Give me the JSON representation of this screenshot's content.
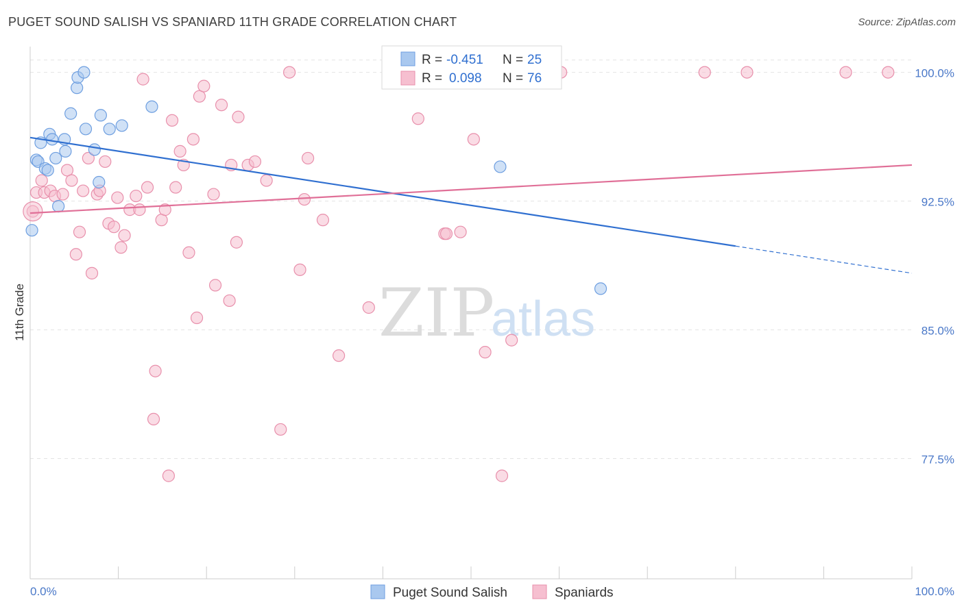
{
  "title": "PUGET SOUND SALISH VS SPANIARD 11TH GRADE CORRELATION CHART",
  "source": "Source: ZipAtlas.com",
  "watermark": {
    "zip": "ZIP",
    "atlas": "atlas"
  },
  "colors": {
    "blue_fill": "#a9c8ef",
    "blue_stroke": "#6d9ee0",
    "blue_line": "#2f6fd0",
    "pink_fill": "#f6bfd0",
    "pink_stroke": "#e88fab",
    "pink_line": "#e06f97",
    "tick_text": "#4a78c8",
    "grid": "#e3e3e3"
  },
  "legend_top": {
    "rows": [
      {
        "r_label": "R =",
        "r_value": "-0.451",
        "n_label": "N =",
        "n_value": "25"
      },
      {
        "r_label": "R =",
        "r_value": "0.098",
        "n_label": "N =",
        "n_value": "76"
      }
    ]
  },
  "chart_data": {
    "type": "scatter",
    "xlabel": "",
    "ylabel": "11th Grade",
    "xlim": [
      0,
      100
    ],
    "ylim": [
      70.5,
      101.5
    ],
    "x_tick_labels": [
      "0.0%",
      "100.0%"
    ],
    "y_ticks": [
      77.5,
      85.0,
      92.5,
      100.0
    ],
    "y_tick_labels": [
      "77.5%",
      "85.0%",
      "92.5%",
      "100.0%"
    ],
    "grid": true,
    "legend_position": "bottom-center",
    "series": [
      {
        "name": "Puget Sound Salish",
        "color": "#a9c8ef",
        "points": [
          [
            0.2,
            90.8
          ],
          [
            0.7,
            94.9
          ],
          [
            0.9,
            94.8
          ],
          [
            1.2,
            95.9
          ],
          [
            1.7,
            94.4
          ],
          [
            2.0,
            94.3
          ],
          [
            2.2,
            96.4
          ],
          [
            2.5,
            96.1
          ],
          [
            2.9,
            95.0
          ],
          [
            3.2,
            92.2
          ],
          [
            3.9,
            96.1
          ],
          [
            4.0,
            95.4
          ],
          [
            4.6,
            97.6
          ],
          [
            5.3,
            99.1
          ],
          [
            5.4,
            99.7
          ],
          [
            6.1,
            100.0
          ],
          [
            6.3,
            96.7
          ],
          [
            7.3,
            95.5
          ],
          [
            7.8,
            93.6
          ],
          [
            8.0,
            97.5
          ],
          [
            9.0,
            96.7
          ],
          [
            10.4,
            96.9
          ],
          [
            13.8,
            98.0
          ],
          [
            53.3,
            94.5
          ],
          [
            64.7,
            87.4
          ]
        ]
      },
      {
        "name": "Spaniards",
        "color": "#f6bfd0",
        "points": [
          [
            0.3,
            91.9
          ],
          [
            0.7,
            93.0
          ],
          [
            1.3,
            93.7
          ],
          [
            1.6,
            93.0
          ],
          [
            2.3,
            93.1
          ],
          [
            2.8,
            92.8
          ],
          [
            3.7,
            92.9
          ],
          [
            4.2,
            94.3
          ],
          [
            4.7,
            93.7
          ],
          [
            5.2,
            89.4
          ],
          [
            5.6,
            90.7
          ],
          [
            6.0,
            93.1
          ],
          [
            6.6,
            95.0
          ],
          [
            7.0,
            88.3
          ],
          [
            7.6,
            92.9
          ],
          [
            7.9,
            93.1
          ],
          [
            8.5,
            94.8
          ],
          [
            8.9,
            91.2
          ],
          [
            9.5,
            91.0
          ],
          [
            9.9,
            92.7
          ],
          [
            10.3,
            89.8
          ],
          [
            10.7,
            90.5
          ],
          [
            11.3,
            92.0
          ],
          [
            12.0,
            92.8
          ],
          [
            12.4,
            92.0
          ],
          [
            12.8,
            99.6
          ],
          [
            13.3,
            93.3
          ],
          [
            14.2,
            82.6
          ],
          [
            14.0,
            79.8
          ],
          [
            14.9,
            91.4
          ],
          [
            15.3,
            92.0
          ],
          [
            15.7,
            76.5
          ],
          [
            16.1,
            97.2
          ],
          [
            16.5,
            93.3
          ],
          [
            17.0,
            95.4
          ],
          [
            17.4,
            94.6
          ],
          [
            18.0,
            89.5
          ],
          [
            18.5,
            96.1
          ],
          [
            18.9,
            85.7
          ],
          [
            19.2,
            98.6
          ],
          [
            19.7,
            99.2
          ],
          [
            20.8,
            92.9
          ],
          [
            21.0,
            87.6
          ],
          [
            21.7,
            98.1
          ],
          [
            22.6,
            86.7
          ],
          [
            22.8,
            94.6
          ],
          [
            23.4,
            90.1
          ],
          [
            23.6,
            97.4
          ],
          [
            24.7,
            94.6
          ],
          [
            25.5,
            94.8
          ],
          [
            26.8,
            93.7
          ],
          [
            28.4,
            79.2
          ],
          [
            29.4,
            100.0
          ],
          [
            30.6,
            88.5
          ],
          [
            31.1,
            92.6
          ],
          [
            31.5,
            95.0
          ],
          [
            33.2,
            91.4
          ],
          [
            35.0,
            83.5
          ],
          [
            38.4,
            86.3
          ],
          [
            41.0,
            100.0
          ],
          [
            44.0,
            97.3
          ],
          [
            47.0,
            90.6
          ],
          [
            47.2,
            90.6
          ],
          [
            48.8,
            90.7
          ],
          [
            49.6,
            100.0
          ],
          [
            50.3,
            96.1
          ],
          [
            51.6,
            83.7
          ],
          [
            53.5,
            76.5
          ],
          [
            54.6,
            84.4
          ],
          [
            57.5,
            100.0
          ],
          [
            58.6,
            100.0
          ],
          [
            60.2,
            100.0
          ],
          [
            76.5,
            100.0
          ],
          [
            81.3,
            100.0
          ],
          [
            92.5,
            100.0
          ],
          [
            97.3,
            100.0
          ]
        ]
      }
    ],
    "trend_lines": [
      {
        "series": "Puget Sound Salish",
        "x": [
          0,
          100
        ],
        "y": [
          96.2,
          88.3
        ],
        "solid_until_x": 80
      },
      {
        "series": "Spaniards",
        "x": [
          0,
          100
        ],
        "y": [
          91.8,
          94.6
        ]
      }
    ]
  }
}
